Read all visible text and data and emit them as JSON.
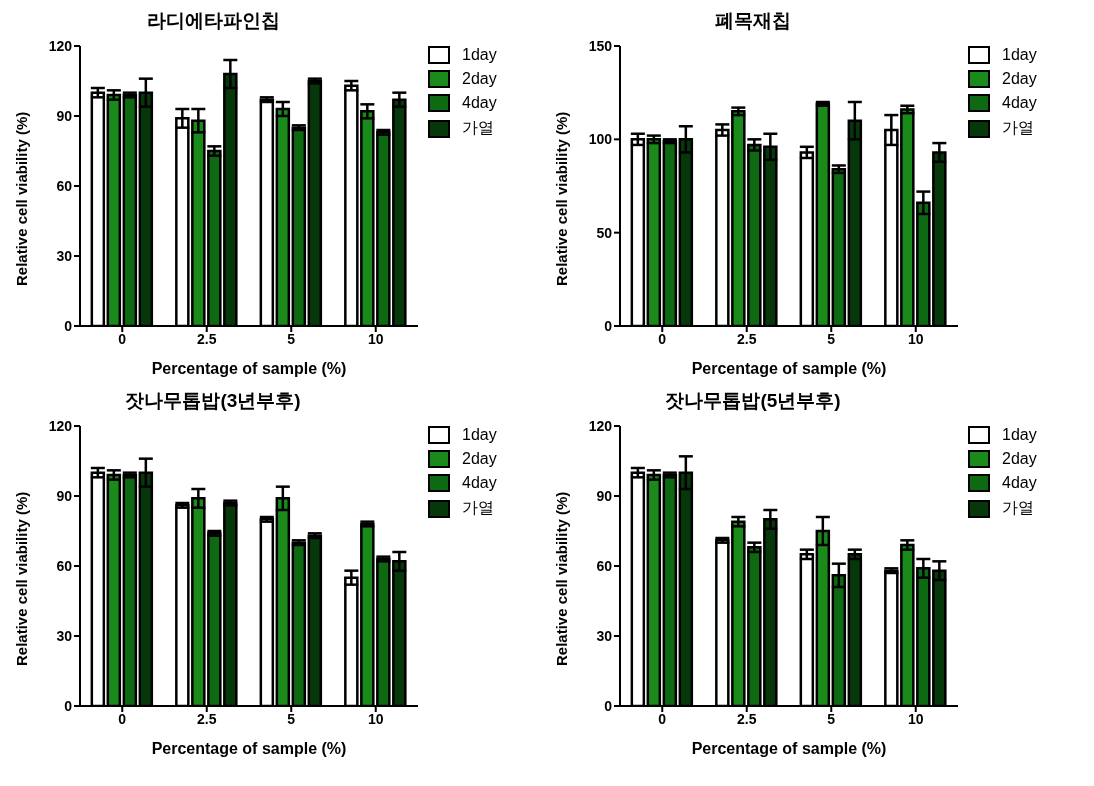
{
  "chart_data": [
    {
      "type": "bar",
      "title": "라디에타파인칩",
      "xlabel": "Percentage of sample (%)",
      "ylabel": "Relative cell viability (%)",
      "categories": [
        "0",
        "2.5",
        "5",
        "10"
      ],
      "ylim": [
        0,
        120
      ],
      "yticks": [
        0,
        30,
        60,
        90,
        120
      ],
      "legend": "top right",
      "series": [
        {
          "name": "1day",
          "color": "#ffffff",
          "values": [
            100,
            89,
            97,
            103
          ],
          "errors": [
            2,
            4,
            1,
            2
          ]
        },
        {
          "name": "2day",
          "color": "#1a8a1a",
          "values": [
            99,
            88,
            93,
            92
          ],
          "errors": [
            2,
            5,
            3,
            3
          ]
        },
        {
          "name": "4day",
          "color": "#0e6a12",
          "values": [
            99,
            75,
            85,
            83
          ],
          "errors": [
            1,
            2,
            1,
            1
          ]
        },
        {
          "name": "가열",
          "color": "#06380b",
          "values": [
            100,
            108,
            105,
            97
          ],
          "errors": [
            6,
            6,
            1,
            3
          ]
        }
      ]
    },
    {
      "type": "bar",
      "title": "폐목재칩",
      "xlabel": "Percentage of sample (%)",
      "ylabel": "Relative cell viability (%)",
      "categories": [
        "0",
        "2.5",
        "5",
        "10"
      ],
      "ylim": [
        0,
        150
      ],
      "yticks": [
        0,
        50,
        100,
        150
      ],
      "legend": "top right",
      "series": [
        {
          "name": "1day",
          "color": "#ffffff",
          "values": [
            100,
            105,
            93,
            105
          ],
          "errors": [
            3,
            3,
            3,
            8
          ]
        },
        {
          "name": "2day",
          "color": "#1a8a1a",
          "values": [
            100,
            115,
            119,
            116
          ],
          "errors": [
            2,
            2,
            1,
            2
          ]
        },
        {
          "name": "4day",
          "color": "#0e6a12",
          "values": [
            99,
            97,
            84,
            66
          ],
          "errors": [
            1,
            3,
            2,
            6
          ]
        },
        {
          "name": "가열",
          "color": "#06380b",
          "values": [
            100,
            96,
            110,
            93
          ],
          "errors": [
            7,
            7,
            10,
            5
          ]
        }
      ]
    },
    {
      "type": "bar",
      "title": "잣나무톱밥(3년부후)",
      "xlabel": "Percentage of sample (%)",
      "ylabel": "Relative cell viability (%)",
      "categories": [
        "0",
        "2.5",
        "5",
        "10"
      ],
      "ylim": [
        0,
        120
      ],
      "yticks": [
        0,
        30,
        60,
        90,
        120
      ],
      "legend": "top right",
      "series": [
        {
          "name": "1day",
          "color": "#ffffff",
          "values": [
            100,
            86,
            80,
            55
          ],
          "errors": [
            2,
            1,
            1,
            3
          ]
        },
        {
          "name": "2day",
          "color": "#1a8a1a",
          "values": [
            99,
            89,
            89,
            78
          ],
          "errors": [
            2,
            4,
            5,
            1
          ]
        },
        {
          "name": "4day",
          "color": "#0e6a12",
          "values": [
            99,
            74,
            70,
            63
          ],
          "errors": [
            1,
            1,
            1,
            1
          ]
        },
        {
          "name": "가열",
          "color": "#06380b",
          "values": [
            100,
            87,
            73,
            62
          ],
          "errors": [
            6,
            1,
            1,
            4
          ]
        }
      ]
    },
    {
      "type": "bar",
      "title": "잣나무톱밥(5년부후)",
      "xlabel": "Percentage of sample (%)",
      "ylabel": "Relative cell viability (%)",
      "categories": [
        "0",
        "2.5",
        "5",
        "10"
      ],
      "ylim": [
        0,
        120
      ],
      "yticks": [
        0,
        30,
        60,
        90,
        120
      ],
      "legend": "top right",
      "series": [
        {
          "name": "1day",
          "color": "#ffffff",
          "values": [
            100,
            71,
            65,
            58
          ],
          "errors": [
            2,
            1,
            2,
            1
          ]
        },
        {
          "name": "2day",
          "color": "#1a8a1a",
          "values": [
            99,
            79,
            75,
            69
          ],
          "errors": [
            2,
            2,
            6,
            2
          ]
        },
        {
          "name": "4day",
          "color": "#0e6a12",
          "values": [
            99,
            68,
            56,
            59
          ],
          "errors": [
            1,
            2,
            5,
            4
          ]
        },
        {
          "name": "가열",
          "color": "#06380b",
          "values": [
            100,
            80,
            65,
            58
          ],
          "errors": [
            7,
            4,
            2,
            4
          ]
        }
      ]
    }
  ]
}
